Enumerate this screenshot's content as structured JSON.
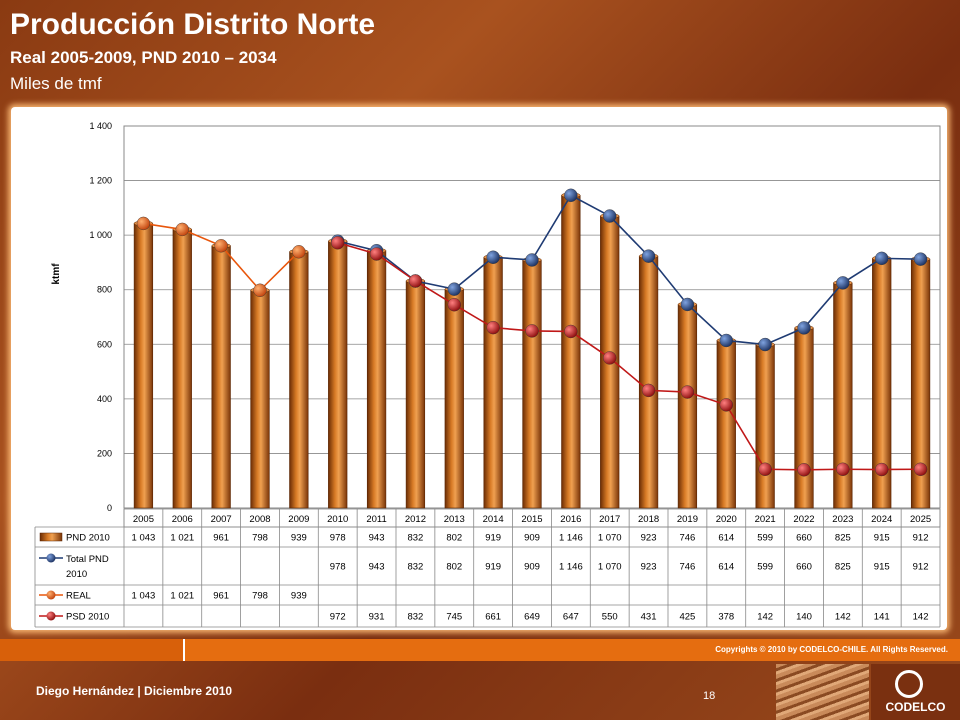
{
  "header": {
    "title": "Producción Distrito Norte",
    "subtitle": "Real 2005-2009, PND 2010 – 2034",
    "unit": "Miles de tmf"
  },
  "footer": {
    "copyright": "Copyrights © 2010 by CODELCO-CHILE.  All Rights Reserved.",
    "author": "Diego Hernández | Diciembre 2010",
    "page": "18",
    "logo": "CODELCO"
  },
  "chart_data": {
    "type": "bar",
    "ylabel": "ktmf",
    "ylim": [
      0,
      1400
    ],
    "yticks": [
      "0",
      "200",
      "400",
      "600",
      "800",
      "1 000",
      "1 200",
      "1 400"
    ],
    "grid": true,
    "categories": [
      "2005",
      "2006",
      "2007",
      "2008",
      "2009",
      "2010",
      "2011",
      "2012",
      "2013",
      "2014",
      "2015",
      "2016",
      "2017",
      "2018",
      "2019",
      "2020",
      "2021",
      "2022",
      "2023",
      "2024",
      "2025"
    ],
    "series": [
      {
        "name": "PND 2010",
        "kind": "bar",
        "color": "#b85a12",
        "values": [
          1043,
          1021,
          961,
          798,
          939,
          978,
          943,
          832,
          802,
          919,
          909,
          1146,
          1070,
          923,
          746,
          614,
          599,
          660,
          825,
          915,
          912
        ],
        "labels": [
          "1 043",
          "1 021",
          "961",
          "798",
          "939",
          "978",
          "943",
          "832",
          "802",
          "919",
          "909",
          "1 146",
          "1 070",
          "923",
          "746",
          "614",
          "599",
          "660",
          "825",
          "915",
          "912"
        ]
      },
      {
        "name": "Total PND 2010",
        "kind": "line",
        "color": "#1f3b73",
        "values": [
          null,
          null,
          null,
          null,
          null,
          978,
          943,
          832,
          802,
          919,
          909,
          1146,
          1070,
          923,
          746,
          614,
          599,
          660,
          825,
          915,
          912
        ],
        "labels": [
          "",
          "",
          "",
          "",
          "",
          "978",
          "943",
          "832",
          "802",
          "919",
          "909",
          "1 146",
          "1 070",
          "923",
          "746",
          "614",
          "599",
          "660",
          "825",
          "915",
          "912"
        ]
      },
      {
        "name": "REAL",
        "kind": "line",
        "color": "#e8560c",
        "values": [
          1043,
          1021,
          961,
          798,
          939,
          null,
          null,
          null,
          null,
          null,
          null,
          null,
          null,
          null,
          null,
          null,
          null,
          null,
          null,
          null,
          null
        ],
        "labels": [
          "1 043",
          "1 021",
          "961",
          "798",
          "939",
          "",
          "",
          "",
          "",
          "",
          "",
          "",
          "",
          "",
          "",
          "",
          "",
          "",
          "",
          "",
          ""
        ]
      },
      {
        "name": "PSD 2010",
        "kind": "line",
        "color": "#c01818",
        "values": [
          null,
          null,
          null,
          null,
          null,
          972,
          931,
          832,
          745,
          661,
          649,
          647,
          550,
          431,
          425,
          378,
          142,
          140,
          142,
          141,
          142
        ],
        "labels": [
          "",
          "",
          "",
          "",
          "",
          "972",
          "931",
          "832",
          "745",
          "661",
          "649",
          "647",
          "550",
          "431",
          "425",
          "378",
          "142",
          "140",
          "142",
          "141",
          "142"
        ]
      }
    ]
  }
}
